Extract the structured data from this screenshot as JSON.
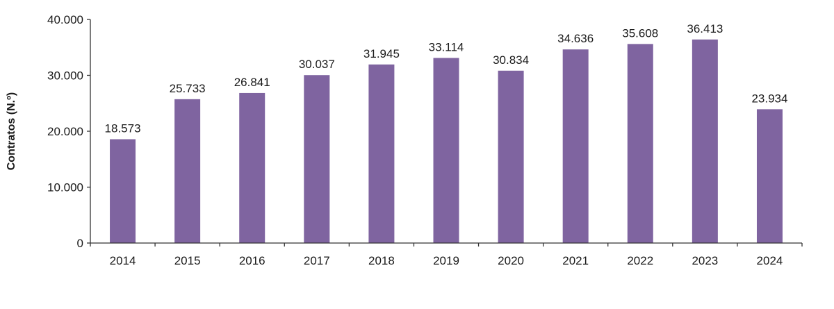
{
  "chart_data": {
    "type": "bar",
    "title": "",
    "xlabel": "",
    "ylabel": "Contratos (N.º)",
    "categories": [
      "2014",
      "2015",
      "2016",
      "2017",
      "2018",
      "2019",
      "2020",
      "2021",
      "2022",
      "2023",
      "2024"
    ],
    "values": [
      18573,
      25733,
      26841,
      30037,
      31945,
      33114,
      30834,
      34636,
      35608,
      36413,
      23934
    ],
    "data_labels": [
      "18.573",
      "25.733",
      "26.841",
      "30.037",
      "31.945",
      "33.114",
      "30.834",
      "34.636",
      "35.608",
      "36.413",
      "23.934"
    ],
    "ylim": [
      0,
      40000
    ],
    "yticks": [
      0,
      10000,
      20000,
      30000,
      40000
    ],
    "ytick_labels": [
      "0",
      "10.000",
      "20.000",
      "30.000",
      "40.000"
    ],
    "grid": false,
    "legend": "none",
    "bar_color": "#7f64a0"
  }
}
